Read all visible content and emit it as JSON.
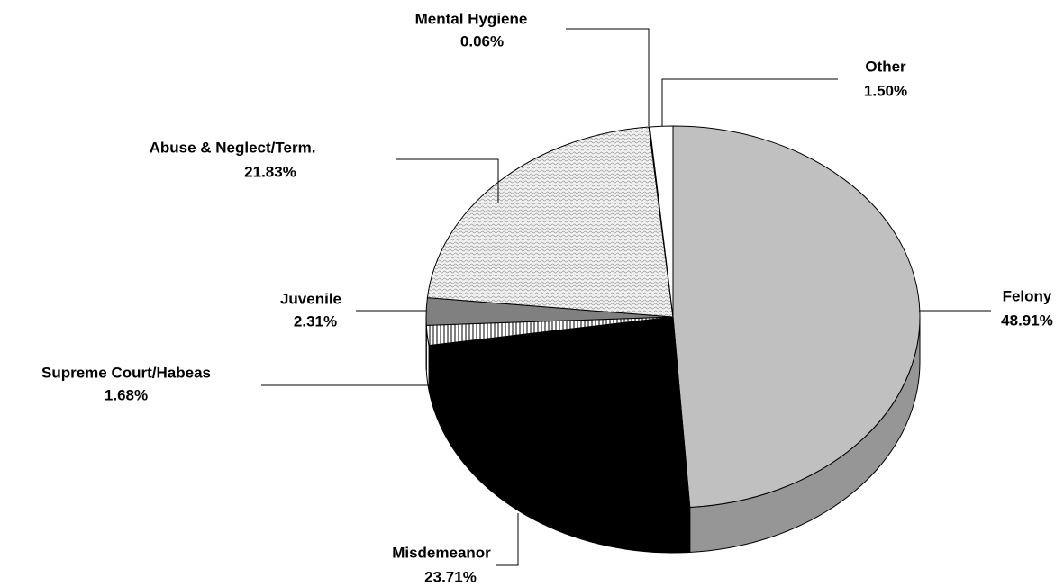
{
  "chart_data": {
    "type": "pie",
    "categories": [
      "Felony",
      "Misdemeanor",
      "Supreme Court/Habeas",
      "Juvenile",
      "Abuse & Neglect/Term.",
      "Mental Hygiene",
      "Other"
    ],
    "values": [
      48.91,
      23.71,
      1.68,
      2.31,
      21.83,
      0.06,
      1.5
    ],
    "value_labels": [
      "48.91%",
      "23.71%",
      "1.68%",
      "2.31%",
      "21.83%",
      "0.06%",
      "1.50%"
    ],
    "colors": [
      "#c0c0c0",
      "#000000",
      "#ffffff",
      "#808080",
      "#e6e6e6",
      "#404040",
      "#ffffff"
    ]
  }
}
